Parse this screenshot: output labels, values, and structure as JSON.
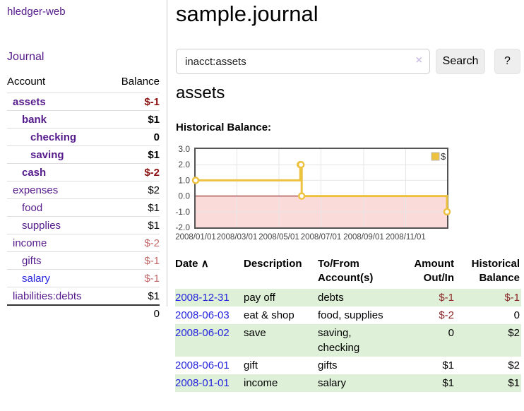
{
  "brand": "hledger-web",
  "sidebar": {
    "journal_link": "Journal",
    "table": {
      "account_header": "Account",
      "balance_header": "Balance",
      "accounts": [
        {
          "name": "assets",
          "depth": 1,
          "bold": true,
          "balance": "$-1",
          "balance_style": "neg-strong"
        },
        {
          "name": "bank",
          "depth": 2,
          "bold": true,
          "balance": "$1",
          "balance_style": "pos"
        },
        {
          "name": "checking",
          "depth": 3,
          "bold": true,
          "balance": "0",
          "balance_style": "pos"
        },
        {
          "name": "saving",
          "depth": 3,
          "bold": true,
          "balance": "$1",
          "balance_style": "pos"
        },
        {
          "name": "cash",
          "depth": 2,
          "bold": true,
          "balance": "$-2",
          "balance_style": "neg-strong"
        },
        {
          "name": "expenses",
          "depth": 1,
          "bold": false,
          "balance": "$2",
          "balance_style": "pos"
        },
        {
          "name": "food",
          "depth": 2,
          "bold": false,
          "balance": "$1",
          "balance_style": "pos"
        },
        {
          "name": "supplies",
          "depth": 2,
          "bold": false,
          "balance": "$1",
          "balance_style": "pos"
        },
        {
          "name": "income",
          "depth": 1,
          "bold": false,
          "balance": "$-2",
          "balance_style": "neg-light"
        },
        {
          "name": "gifts",
          "depth": 2,
          "bold": false,
          "balance": "$-1",
          "balance_style": "neg-light"
        },
        {
          "name": "salary",
          "depth": 2,
          "bold": false,
          "balance": "$-1",
          "balance_style": "neg-light",
          "link_color": "blue"
        },
        {
          "name": "liabilities:debts",
          "depth": 1,
          "bold": false,
          "balance": "$1",
          "balance_style": "pos"
        }
      ],
      "total": "0"
    }
  },
  "header": {
    "title": "sample.journal"
  },
  "search": {
    "value": "inacct:assets",
    "button": "Search",
    "help_button": "?",
    "clear_icon": "×"
  },
  "account_page": {
    "title": "assets",
    "chart_label": "Historical Balance:"
  },
  "chart_data": {
    "type": "line",
    "step": true,
    "title": "Historical Balance",
    "series": [
      {
        "name": "$",
        "color": "#edc240",
        "points": [
          [
            "2008-01-01",
            1
          ],
          [
            "2008-06-01",
            2
          ],
          [
            "2008-06-02",
            2
          ],
          [
            "2008-06-03",
            0
          ],
          [
            "2008-12-31",
            -1
          ]
        ]
      }
    ],
    "x_range": [
      "2008-01-01",
      "2008-12-31"
    ],
    "x_ticks": [
      "2008/01/01",
      "2008/03/01",
      "2008/05/01",
      "2008/07/01",
      "2008/09/01",
      "2008/11/01"
    ],
    "y_ticks": [
      "3.0",
      "2.0",
      "1.0",
      "0.0",
      "-1.0",
      "-2.0"
    ],
    "ylim": [
      -2,
      3
    ],
    "grid": true,
    "legend_position": "top-right",
    "legend": "$",
    "negative_region_fill": "#fbdada",
    "zero_line_color": "#8b0000",
    "border_color": "#545454",
    "gridline_color": "#e6e6e6",
    "tick_label_color": "#444444"
  },
  "register": {
    "columns": [
      "Date",
      "Description",
      "To/From Account(s)",
      "Amount Out/In",
      "Historical Balance"
    ],
    "sort_arrow": "∧",
    "rows": [
      {
        "date": "2008-12-31",
        "description": "pay off",
        "accounts": "debts",
        "amount": "$-1",
        "amount_neg": true,
        "balance": "$-1",
        "balance_neg": true
      },
      {
        "date": "2008-06-03",
        "description": "eat & shop",
        "accounts": "food, supplies",
        "amount": "$-2",
        "amount_neg": true,
        "balance": "0",
        "balance_neg": false
      },
      {
        "date": "2008-06-02",
        "description": "save",
        "accounts": "saving, checking",
        "amount": "0",
        "amount_neg": false,
        "balance": "$2",
        "balance_neg": false
      },
      {
        "date": "2008-06-01",
        "description": "gift",
        "accounts": "gifts",
        "amount": "$1",
        "amount_neg": false,
        "balance": "$2",
        "balance_neg": false
      },
      {
        "date": "2008-01-01",
        "description": "income",
        "accounts": "salary",
        "amount": "$1",
        "amount_neg": false,
        "balance": "$1",
        "balance_neg": false
      }
    ]
  },
  "colors": {
    "link_purple": "#551a8b",
    "link_blue": "#2424dd",
    "negative_strong": "#8b0f0f",
    "negative_light": "#c26868",
    "table_negative": "#8b2525",
    "row_stripe_green": "#dff0d8",
    "chart_series_gold": "#edc240"
  }
}
